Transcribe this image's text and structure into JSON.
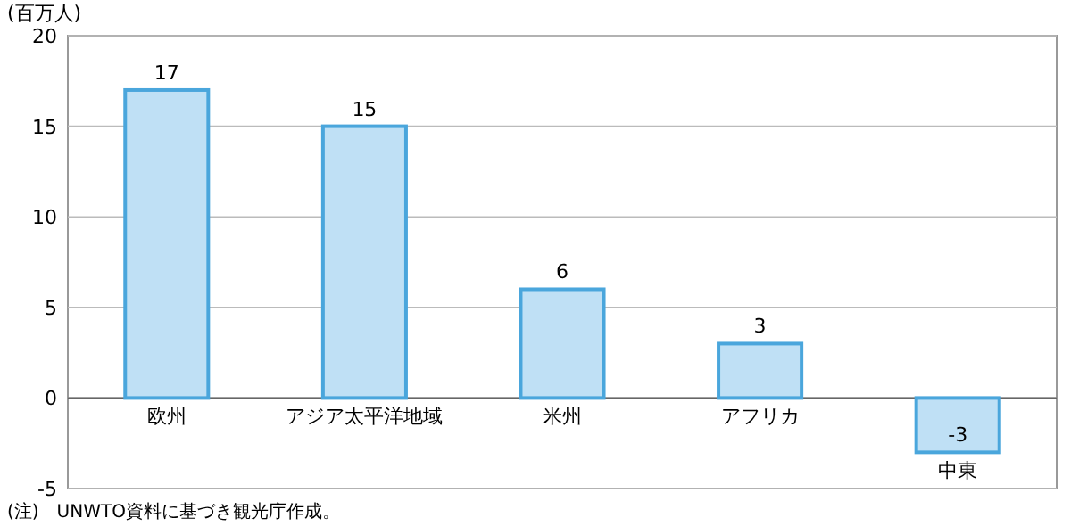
{
  "chart_data": {
    "type": "bar",
    "ylabel": "(百万人)",
    "categories": [
      "欧州",
      "アジア太平洋地域",
      "米州",
      "アフリカ",
      "中東"
    ],
    "values": [
      17,
      15,
      6,
      3,
      -3
    ],
    "color": "#bfe0f5",
    "ylim": [
      -5,
      20
    ],
    "yticks": [
      -5,
      0,
      5,
      10,
      15,
      20
    ],
    "grid": "y",
    "data_labels": true,
    "annotations": [
      "(注)　UNWTO資料に基づき観光庁作成。"
    ]
  }
}
